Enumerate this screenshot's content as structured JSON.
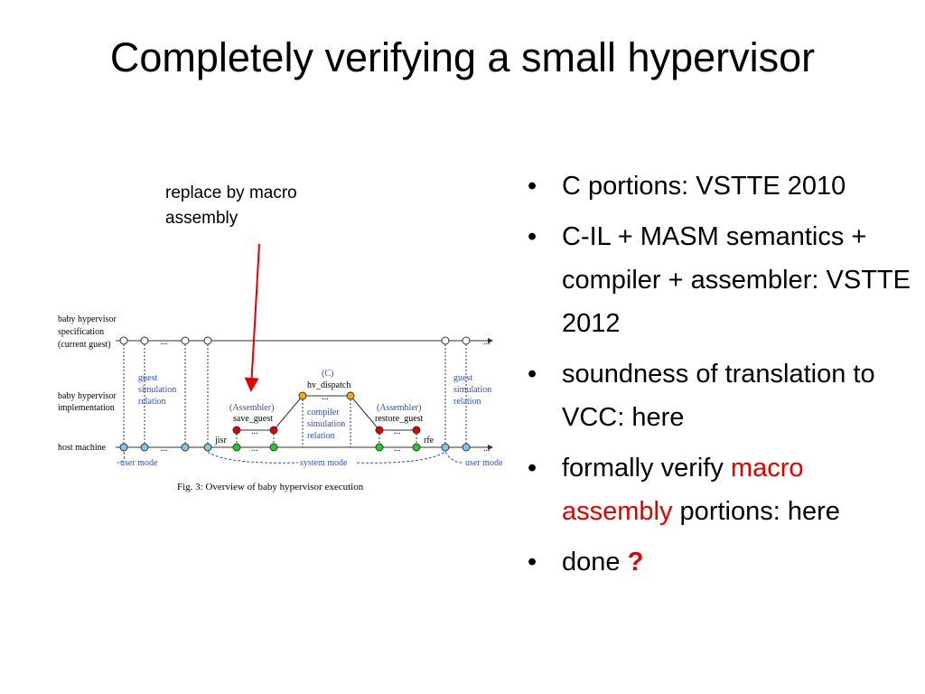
{
  "title": "Completely verifying a small hypervisor",
  "annotation": "replace by macro assembly",
  "bullets": [
    [
      {
        "text": "C portions: VSTTE 2010"
      }
    ],
    [
      {
        "text": "C-IL + MASM semantics + compiler + assembler: VSTTE 2012"
      }
    ],
    [
      {
        "text": "soundness of translation to VCC: here"
      }
    ],
    [
      {
        "text": "formally verify "
      },
      {
        "text": "macro assembly",
        "color": "#e00000"
      },
      {
        "text": " portions: here"
      }
    ],
    [
      {
        "text": "done "
      },
      {
        "text": "?",
        "color": "#e00000",
        "bold": true
      }
    ]
  ],
  "figure": {
    "row_labels": [
      "baby hypervisor",
      "specification",
      "(current guest)",
      "baby hypervisor",
      "implementation",
      "host machine"
    ],
    "ellipsis": "...",
    "guest_relation": [
      "guest",
      "simulation",
      "relation"
    ],
    "c_label": "(C)",
    "hv_dispatch": "hv_dispatch",
    "assembler": "(Assembler)",
    "save_guest": "save_guest",
    "restore_guest": "restore_guest",
    "compiler_relation": [
      "compiler",
      "simulation",
      "relation"
    ],
    "jisr": "jisr",
    "rfe": "rfe",
    "user_mode": "user mode",
    "system_mode": "system mode",
    "caption": "Fig. 3: Overview of baby hypervisor execution"
  }
}
